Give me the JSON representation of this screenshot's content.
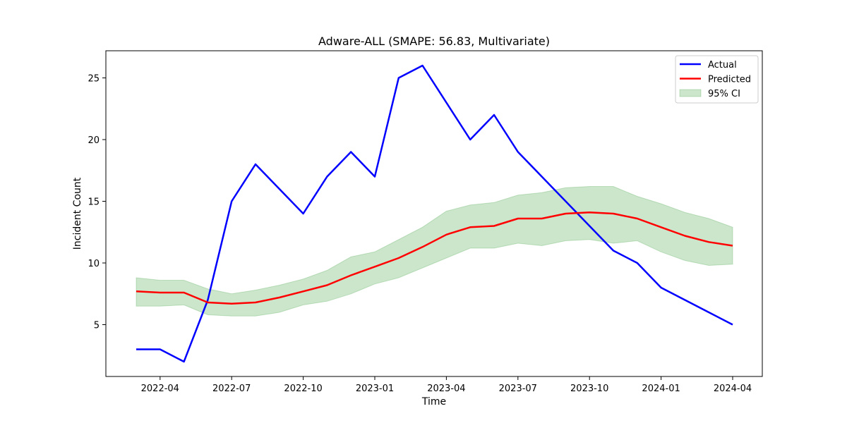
{
  "chart_data": {
    "type": "line",
    "title": "Adware-ALL (SMAPE: 56.83, Multivariate)",
    "xlabel": "Time",
    "ylabel": "Incident Count",
    "x": [
      "2022-03",
      "2022-04",
      "2022-05",
      "2022-06",
      "2022-07",
      "2022-08",
      "2022-09",
      "2022-10",
      "2022-11",
      "2022-12",
      "2023-01",
      "2023-02",
      "2023-03",
      "2023-04",
      "2023-05",
      "2023-06",
      "2023-07",
      "2023-08",
      "2023-09",
      "2023-10",
      "2023-11",
      "2023-12",
      "2024-01",
      "2024-02",
      "2024-03",
      "2024-04"
    ],
    "xticks": [
      "2022-04",
      "2022-07",
      "2022-10",
      "2023-01",
      "2023-04",
      "2023-07",
      "2023-10",
      "2024-01",
      "2024-04"
    ],
    "ylim": [
      0.8,
      27.2
    ],
    "yticks": [
      5,
      10,
      15,
      20,
      25
    ],
    "grid": false,
    "legend_position": "top-right",
    "series": [
      {
        "name": "Actual",
        "color": "#0000ff",
        "values": [
          3,
          3,
          2,
          7,
          15,
          18,
          16,
          14,
          17,
          19,
          17,
          25,
          26,
          23,
          20,
          22,
          19,
          17,
          15,
          13,
          11,
          10,
          8,
          7,
          6,
          5
        ]
      },
      {
        "name": "Predicted",
        "color": "#ff0000",
        "values": [
          7.7,
          7.6,
          7.6,
          6.8,
          6.7,
          6.8,
          7.2,
          7.7,
          8.2,
          9.0,
          9.7,
          10.4,
          11.3,
          12.3,
          12.9,
          13.0,
          13.6,
          13.6,
          14.0,
          14.1,
          14.0,
          13.6,
          12.9,
          12.2,
          11.7,
          11.4
        ]
      }
    ],
    "ci": {
      "name": "95% CI",
      "color": "#008000",
      "lower": [
        6.5,
        6.5,
        6.6,
        5.8,
        5.7,
        5.7,
        6.0,
        6.6,
        6.9,
        7.5,
        8.3,
        8.8,
        9.6,
        10.4,
        11.2,
        11.2,
        11.6,
        11.4,
        11.8,
        11.9,
        11.6,
        11.8,
        10.9,
        10.2,
        9.8,
        9.9
      ],
      "upper": [
        8.8,
        8.6,
        8.6,
        7.9,
        7.5,
        7.8,
        8.2,
        8.7,
        9.4,
        10.5,
        10.9,
        11.9,
        12.9,
        14.2,
        14.7,
        14.9,
        15.5,
        15.7,
        16.1,
        16.2,
        16.2,
        15.4,
        14.8,
        14.1,
        13.6,
        12.9
      ]
    }
  }
}
